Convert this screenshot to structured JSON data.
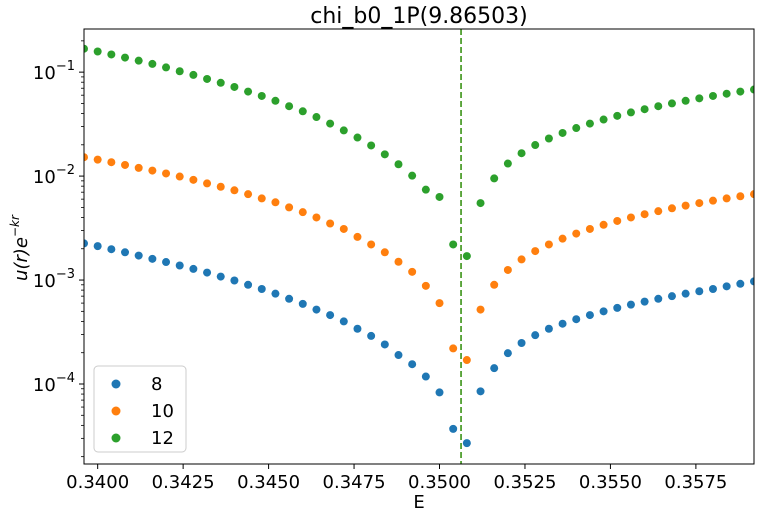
{
  "chart_data": {
    "type": "scatter",
    "title": "chi_b0_1P(9.86503)",
    "xlabel": "E",
    "ylabel_prefix": "u(r)e",
    "ylabel_exponent": "−kr",
    "xlim": [
      0.3396,
      0.3592
    ],
    "ylim": [
      1.7e-05,
      0.26
    ],
    "yscale": "log",
    "x_ticks": [
      0.34,
      0.3425,
      0.345,
      0.3475,
      0.35,
      0.3525,
      0.355,
      0.3575
    ],
    "x_tick_labels": [
      "0.3400",
      "0.3425",
      "0.3450",
      "0.3475",
      "0.3500",
      "0.3525",
      "0.3550",
      "0.3575"
    ],
    "y_ticks": [
      {
        "value": 0.0001,
        "base": "10",
        "exp": "−4"
      },
      {
        "value": 0.001,
        "base": "10",
        "exp": "−3"
      },
      {
        "value": 0.01,
        "base": "10",
        "exp": "−2"
      },
      {
        "value": 0.1,
        "base": "10",
        "exp": "−1"
      }
    ],
    "vline": {
      "x": 0.35063,
      "color": "#2ca02c",
      "color2": "#ff7f0e"
    },
    "legend_position": "lower-left",
    "series": [
      {
        "name": "8",
        "color": "#1f77b4",
        "points": [
          [
            0.3396,
            0.00225
          ],
          [
            0.34,
            0.00212
          ],
          [
            0.3404,
            0.00198
          ],
          [
            0.3408,
            0.00185
          ],
          [
            0.3412,
            0.00172
          ],
          [
            0.3416,
            0.0016
          ],
          [
            0.342,
            0.00149
          ],
          [
            0.3424,
            0.00138
          ],
          [
            0.3428,
            0.00128
          ],
          [
            0.3432,
            0.00118
          ],
          [
            0.3436,
            0.00108
          ],
          [
            0.344,
            0.00099
          ],
          [
            0.3444,
            0.0009
          ],
          [
            0.3448,
            0.00082
          ],
          [
            0.3452,
            0.00074
          ],
          [
            0.3456,
            0.00066
          ],
          [
            0.346,
            0.00059
          ],
          [
            0.3464,
            0.00052
          ],
          [
            0.3468,
            0.00046
          ],
          [
            0.3472,
            0.0004
          ],
          [
            0.3476,
            0.00034
          ],
          [
            0.348,
            0.00029
          ],
          [
            0.3484,
            0.00024
          ],
          [
            0.3488,
            0.00019
          ],
          [
            0.3492,
            0.000155
          ],
          [
            0.3496,
            0.000118
          ],
          [
            0.35,
            8.3e-05
          ],
          [
            0.3504,
            3.7e-05
          ],
          [
            0.3508,
            2.7e-05
          ],
          [
            0.3512,
            8.5e-05
          ],
          [
            0.3516,
            0.000142
          ],
          [
            0.352,
            0.000198
          ],
          [
            0.3524,
            0.000248
          ],
          [
            0.3528,
            0.000295
          ],
          [
            0.3532,
            0.00034
          ],
          [
            0.3536,
            0.00038
          ],
          [
            0.354,
            0.00042
          ],
          [
            0.3544,
            0.00046
          ],
          [
            0.3548,
            0.0005
          ],
          [
            0.3552,
            0.00054
          ],
          [
            0.3556,
            0.00058
          ],
          [
            0.356,
            0.00062
          ],
          [
            0.3564,
            0.00066
          ],
          [
            0.3568,
            0.0007
          ],
          [
            0.3572,
            0.00074
          ],
          [
            0.3576,
            0.00078
          ],
          [
            0.358,
            0.00082
          ],
          [
            0.3584,
            0.00087
          ],
          [
            0.3588,
            0.00092
          ],
          [
            0.3592,
            0.00097
          ]
        ]
      },
      {
        "name": "10",
        "color": "#ff7f0e",
        "points": [
          [
            0.3396,
            0.0152
          ],
          [
            0.34,
            0.0144
          ],
          [
            0.3404,
            0.0136
          ],
          [
            0.3408,
            0.0128
          ],
          [
            0.3412,
            0.012
          ],
          [
            0.3416,
            0.0113
          ],
          [
            0.342,
            0.0106
          ],
          [
            0.3424,
            0.0099
          ],
          [
            0.3428,
            0.0092
          ],
          [
            0.3432,
            0.0085
          ],
          [
            0.3436,
            0.0079
          ],
          [
            0.344,
            0.0073
          ],
          [
            0.3444,
            0.0067
          ],
          [
            0.3448,
            0.0061
          ],
          [
            0.3452,
            0.0056
          ],
          [
            0.3456,
            0.005
          ],
          [
            0.346,
            0.0045
          ],
          [
            0.3464,
            0.004
          ],
          [
            0.3468,
            0.0035
          ],
          [
            0.3472,
            0.0031
          ],
          [
            0.3476,
            0.0026
          ],
          [
            0.348,
            0.0022
          ],
          [
            0.3484,
            0.00185
          ],
          [
            0.3488,
            0.0015
          ],
          [
            0.3492,
            0.0012
          ],
          [
            0.3496,
            0.00088
          ],
          [
            0.35,
            0.0006
          ],
          [
            0.3504,
            0.00022
          ],
          [
            0.3508,
            0.00017
          ],
          [
            0.3512,
            0.00052
          ],
          [
            0.3516,
            0.0009
          ],
          [
            0.352,
            0.00125
          ],
          [
            0.3524,
            0.00158
          ],
          [
            0.3528,
            0.0019
          ],
          [
            0.3532,
            0.0022
          ],
          [
            0.3536,
            0.0025
          ],
          [
            0.354,
            0.0028
          ],
          [
            0.3544,
            0.0031
          ],
          [
            0.3548,
            0.0034
          ],
          [
            0.3552,
            0.0037
          ],
          [
            0.3556,
            0.004
          ],
          [
            0.356,
            0.0043
          ],
          [
            0.3564,
            0.0046
          ],
          [
            0.3568,
            0.0049
          ],
          [
            0.3572,
            0.0052
          ],
          [
            0.3576,
            0.0055
          ],
          [
            0.358,
            0.0058
          ],
          [
            0.3584,
            0.0061
          ],
          [
            0.3588,
            0.0064
          ],
          [
            0.3592,
            0.0067
          ]
        ]
      },
      {
        "name": "12",
        "color": "#2ca02c",
        "points": [
          [
            0.3396,
            0.168
          ],
          [
            0.34,
            0.158
          ],
          [
            0.3404,
            0.148
          ],
          [
            0.3408,
            0.138
          ],
          [
            0.3412,
            0.129
          ],
          [
            0.3416,
            0.12
          ],
          [
            0.342,
            0.111
          ],
          [
            0.3424,
            0.102
          ],
          [
            0.3428,
            0.094
          ],
          [
            0.3432,
            0.086
          ],
          [
            0.3436,
            0.079
          ],
          [
            0.344,
            0.072
          ],
          [
            0.3444,
            0.065
          ],
          [
            0.3448,
            0.059
          ],
          [
            0.3452,
            0.053
          ],
          [
            0.3456,
            0.047
          ],
          [
            0.346,
            0.042
          ],
          [
            0.3464,
            0.037
          ],
          [
            0.3468,
            0.032
          ],
          [
            0.3472,
            0.0275
          ],
          [
            0.3476,
            0.0235
          ],
          [
            0.348,
            0.0197
          ],
          [
            0.3484,
            0.0162
          ],
          [
            0.3488,
            0.013
          ],
          [
            0.3492,
            0.0101
          ],
          [
            0.3496,
            0.0074
          ],
          [
            0.35,
            0.0063
          ],
          [
            0.3504,
            0.0022
          ],
          [
            0.3508,
            0.0017
          ],
          [
            0.3512,
            0.0055
          ],
          [
            0.3516,
            0.0095
          ],
          [
            0.352,
            0.0132
          ],
          [
            0.3524,
            0.0166
          ],
          [
            0.3528,
            0.0199
          ],
          [
            0.3532,
            0.023
          ],
          [
            0.3536,
            0.026
          ],
          [
            0.354,
            0.029
          ],
          [
            0.3544,
            0.032
          ],
          [
            0.3548,
            0.035
          ],
          [
            0.3552,
            0.038
          ],
          [
            0.3556,
            0.041
          ],
          [
            0.356,
            0.044
          ],
          [
            0.3564,
            0.047
          ],
          [
            0.3568,
            0.05
          ],
          [
            0.3572,
            0.053
          ],
          [
            0.3576,
            0.056
          ],
          [
            0.358,
            0.059
          ],
          [
            0.3584,
            0.062
          ],
          [
            0.3588,
            0.065
          ],
          [
            0.3592,
            0.068
          ]
        ]
      }
    ]
  }
}
